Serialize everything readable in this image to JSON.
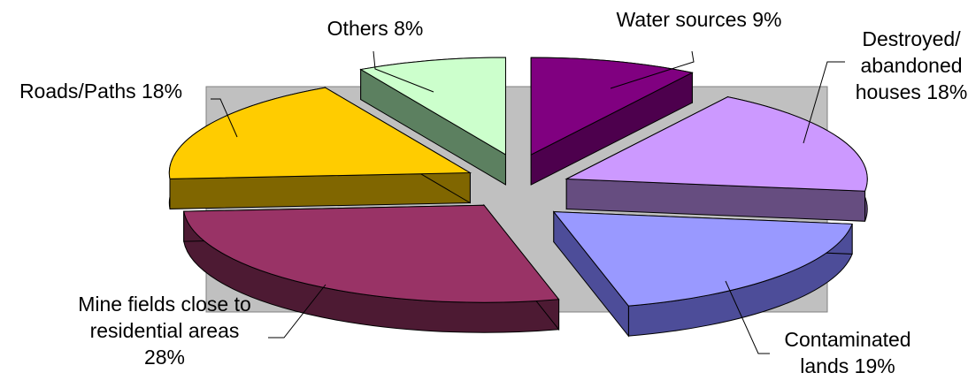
{
  "chart_data": {
    "type": "pie",
    "exploded": true,
    "three_d": true,
    "plot_area_background": "#c0c0c0",
    "slices": [
      {
        "label": "Water sources 9%",
        "value": 9,
        "color": "#800080",
        "side_color": "#4d004d",
        "lines": [
          "Water sources 9%"
        ]
      },
      {
        "label": "Destroyed/ abandoned houses 18%",
        "value": 18,
        "color": "#cc99ff",
        "side_color": "#664d80",
        "lines": [
          "Destroyed/",
          "abandoned",
          "houses 18%"
        ]
      },
      {
        "label": "Contaminated lands 19%",
        "value": 19,
        "color": "#9999ff",
        "side_color": "#4d4d99",
        "lines": [
          "Contaminated",
          "lands 19%"
        ]
      },
      {
        "label": "Mine fields close to residential areas 28%",
        "value": 28,
        "color": "#993366",
        "side_color": "#4d1a33",
        "lines": [
          "Mine fields close to",
          "residential areas",
          "28%"
        ]
      },
      {
        "label": "Roads/Paths 18%",
        "value": 18,
        "color": "#ffcc00",
        "side_color": "#806600",
        "lines": [
          "Roads/Paths 18%"
        ]
      },
      {
        "label": "Others 8%",
        "value": 8,
        "color": "#ccffcc",
        "side_color": "#5c8060",
        "lines": [
          "Others  8%"
        ]
      }
    ]
  }
}
